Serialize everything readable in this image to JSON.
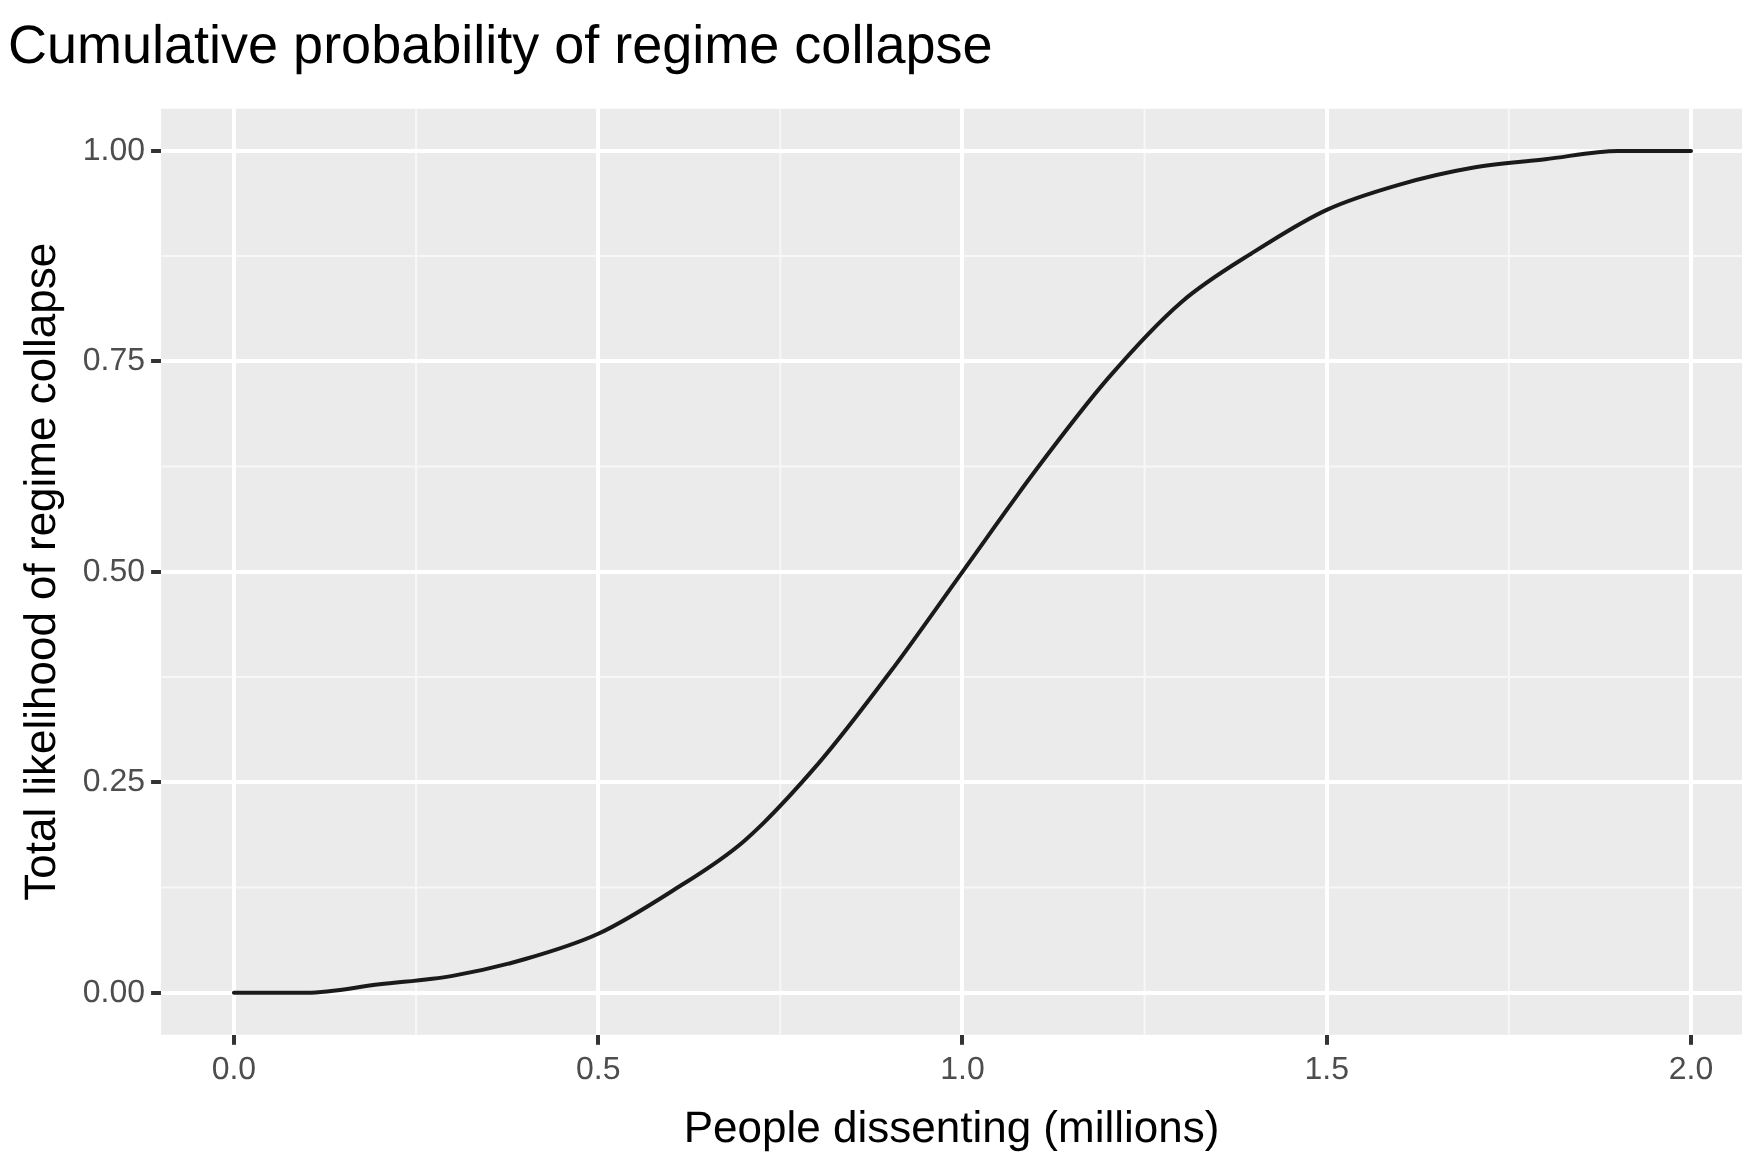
{
  "chart_data": {
    "type": "line",
    "title": "Cumulative probability of regime collapse",
    "xlabel": "People dissenting (millions)",
    "ylabel": "Total likelihood of regime collapse",
    "x": [
      0,
      0.1,
      0.2,
      0.3,
      0.4,
      0.5,
      0.6,
      0.7,
      0.8,
      0.9,
      1.0,
      1.1,
      1.2,
      1.3,
      1.4,
      1.5,
      1.6,
      1.7,
      1.8,
      1.9,
      2.0
    ],
    "series": [
      {
        "color": "#1a1a1a",
        "values": [
          0.0,
          0.0,
          0.01,
          0.02,
          0.04,
          0.07,
          0.12,
          0.18,
          0.27,
          0.38,
          0.5,
          0.62,
          0.73,
          0.82,
          0.88,
          0.93,
          0.96,
          0.98,
          0.99,
          1.0,
          1.0
        ]
      }
    ],
    "xlim": [
      -0.1,
      2.07
    ],
    "ylim": [
      -0.05,
      1.05
    ],
    "xticks": [
      {
        "value": 0,
        "label": "0.0"
      },
      {
        "value": 0.5,
        "label": "0.5"
      },
      {
        "value": 1,
        "label": "1.0"
      },
      {
        "value": 1.5,
        "label": "1.5"
      },
      {
        "value": 2,
        "label": "2.0"
      }
    ],
    "yticks": [
      {
        "value": 0,
        "label": "0.00"
      },
      {
        "value": 0.25,
        "label": "0.25"
      },
      {
        "value": 0.5,
        "label": "0.50"
      },
      {
        "value": 0.75,
        "label": "0.75"
      },
      {
        "value": 1,
        "label": "1.00"
      }
    ],
    "grid": true,
    "legend": false,
    "marker": "none",
    "line_style": "solid"
  }
}
